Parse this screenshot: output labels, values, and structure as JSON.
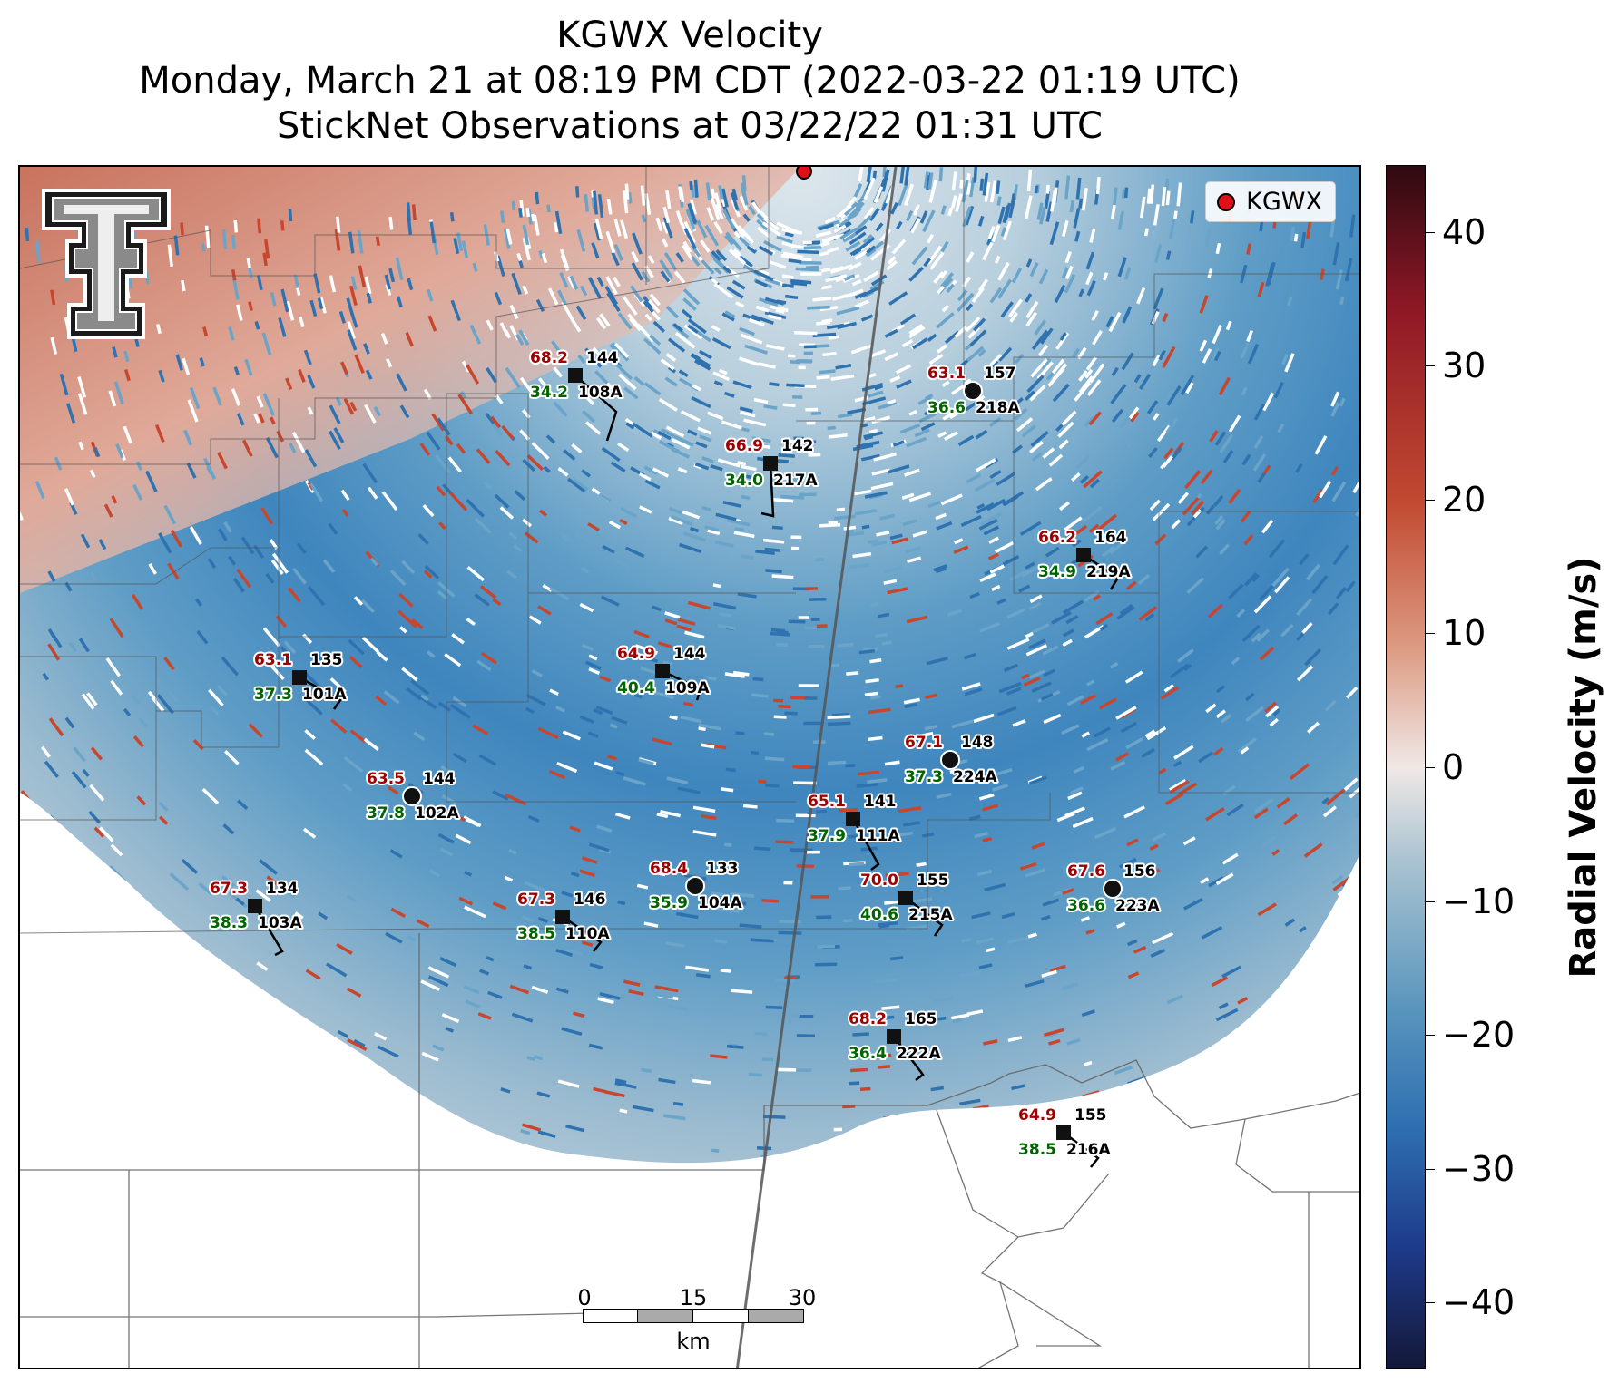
{
  "title": {
    "line1": "KGWX Velocity",
    "line2": "Monday, March 21 at 08:19 PM CDT (2022-03-22 01:19 UTC)",
    "line3": "StickNet Observations at 03/22/22 01:31 UTC"
  },
  "legend": {
    "label": "KGWX",
    "marker_color": "#e0101a"
  },
  "colorbar": {
    "title": "Radial Velocity (m/s)",
    "ticks": [
      "40",
      "30",
      "20",
      "10",
      "0",
      "−10",
      "−20",
      "−30",
      "−40"
    ],
    "range": [
      -45,
      45
    ]
  },
  "scalebar": {
    "labels": [
      "0",
      "15",
      "30"
    ],
    "unit": "km"
  },
  "logo": {
    "name": "texas-tech-double-t-logo"
  },
  "colors": {
    "temperature": "#a00000",
    "dewpoint": "#006400",
    "station_id": "#000000"
  },
  "stations": [
    {
      "id": "108A",
      "temp": "68.2",
      "dew": "34.2",
      "pressure": "144",
      "marker": "square"
    },
    {
      "id": "218A",
      "temp": "63.1",
      "dew": "36.6",
      "pressure": "157",
      "marker": "circle"
    },
    {
      "id": "217A",
      "temp": "66.9",
      "dew": "34.0",
      "pressure": "142",
      "marker": "square"
    },
    {
      "id": "219A",
      "temp": "66.2",
      "dew": "34.9",
      "pressure": "164",
      "marker": "square"
    },
    {
      "id": "101A",
      "temp": "63.1",
      "dew": "37.3",
      "pressure": "135",
      "marker": "square"
    },
    {
      "id": "109A",
      "temp": "64.9",
      "dew": "40.4",
      "pressure": "144",
      "marker": "square"
    },
    {
      "id": "224A",
      "temp": "67.1",
      "dew": "37.3",
      "pressure": "148",
      "marker": "circle"
    },
    {
      "id": "102A",
      "temp": "63.5",
      "dew": "37.8",
      "pressure": "144",
      "marker": "circle"
    },
    {
      "id": "111A",
      "temp": "65.1",
      "dew": "37.9",
      "pressure": "141",
      "marker": "square"
    },
    {
      "id": "103A",
      "temp": "67.3",
      "dew": "38.3",
      "pressure": "134",
      "marker": "square"
    },
    {
      "id": "104A",
      "temp": "68.4",
      "dew": "35.9",
      "pressure": "133",
      "marker": "circle"
    },
    {
      "id": "110A",
      "temp": "67.3",
      "dew": "38.5",
      "pressure": "146",
      "marker": "square"
    },
    {
      "id": "215A",
      "temp": "70.0",
      "dew": "40.6",
      "pressure": "155",
      "marker": "square"
    },
    {
      "id": "223A",
      "temp": "67.6",
      "dew": "36.6",
      "pressure": "156",
      "marker": "circle"
    },
    {
      "id": "222A",
      "temp": "68.2",
      "dew": "36.4",
      "pressure": "165",
      "marker": "square"
    },
    {
      "id": "216A",
      "temp": "64.9",
      "dew": "38.5",
      "pressure": "155",
      "marker": "square"
    }
  ]
}
